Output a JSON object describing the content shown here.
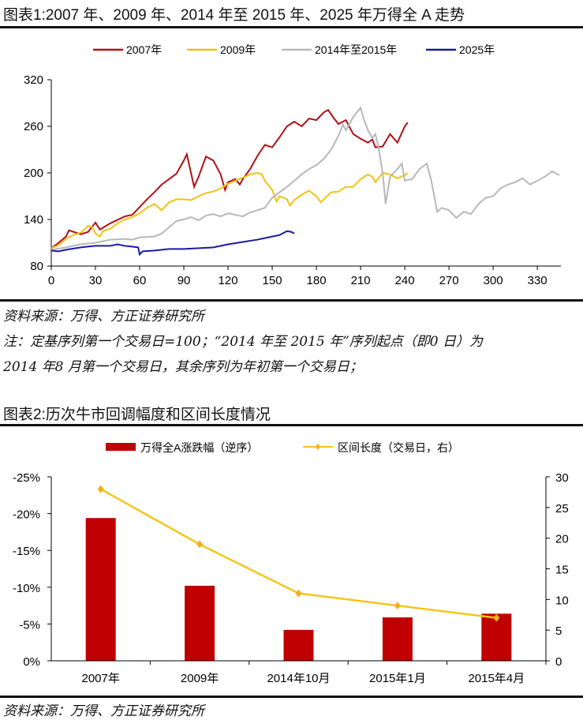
{
  "chart1": {
    "title": "图表1:2007 年、2009 年、2014 年至 2015 年、2025 年万得全 A 走势",
    "source": "资料来源：万得、方正证券研究所",
    "note_line1": "注：定基序列第一个交易日=100；“2014 年至 2015 年”序列起点（即0 日）为",
    "note_line2": "2014 年8 月第一个交易日，其余序列为年初第一个交易日；"
  },
  "chart2": {
    "title": "图表2:历次牛市回调幅度和区间长度情况",
    "source": "资料来源：万得、方正证券研究所"
  },
  "chart_data": [
    {
      "type": "line",
      "xlim": [
        0,
        346
      ],
      "ylim": [
        80,
        320
      ],
      "xticks": [
        0,
        30,
        60,
        90,
        120,
        150,
        180,
        210,
        240,
        270,
        300,
        330
      ],
      "yticks": [
        80,
        140,
        200,
        260,
        320
      ],
      "grid": false,
      "legend": "top",
      "series": [
        {
          "name": "2007年",
          "color": "#b01116",
          "points": [
            [
              0,
              103
            ],
            [
              5,
              110
            ],
            [
              10,
              118
            ],
            [
              12,
              126
            ],
            [
              20,
              121
            ],
            [
              25,
              124
            ],
            [
              30,
              136
            ],
            [
              33,
              127
            ],
            [
              40,
              135
            ],
            [
              50,
              144
            ],
            [
              55,
              146
            ],
            [
              60,
              156
            ],
            [
              65,
              166
            ],
            [
              70,
              175
            ],
            [
              75,
              185
            ],
            [
              80,
              192
            ],
            [
              85,
              199
            ],
            [
              90,
              216
            ],
            [
              92,
              224
            ],
            [
              97,
              182
            ],
            [
              100,
              195
            ],
            [
              105,
              221
            ],
            [
              110,
              216
            ],
            [
              115,
              198
            ],
            [
              118,
              178
            ],
            [
              120,
              188
            ],
            [
              125,
              192
            ],
            [
              128,
              185
            ],
            [
              130,
              192
            ],
            [
              135,
              205
            ],
            [
              140,
              222
            ],
            [
              145,
              236
            ],
            [
              150,
              233
            ],
            [
              155,
              246
            ],
            [
              160,
              260
            ],
            [
              165,
              266
            ],
            [
              170,
              260
            ],
            [
              175,
              270
            ],
            [
              180,
              268
            ],
            [
              185,
              278
            ],
            [
              188,
              281
            ],
            [
              192,
              270
            ],
            [
              195,
              263
            ],
            [
              200,
              268
            ],
            [
              205,
              250
            ],
            [
              210,
              244
            ],
            [
              215,
              239
            ],
            [
              218,
              243
            ],
            [
              220,
              233
            ],
            [
              225,
              234
            ],
            [
              230,
              250
            ],
            [
              235,
              239
            ],
            [
              240,
              260
            ],
            [
              242,
              265
            ]
          ]
        },
        {
          "name": "2009年",
          "color": "#f2c218",
          "points": [
            [
              0,
              103
            ],
            [
              5,
              107
            ],
            [
              10,
              115
            ],
            [
              15,
              120
            ],
            [
              20,
              123
            ],
            [
              25,
              132
            ],
            [
              28,
              130
            ],
            [
              30,
              122
            ],
            [
              33,
              118
            ],
            [
              35,
              125
            ],
            [
              40,
              128
            ],
            [
              45,
              135
            ],
            [
              50,
              140
            ],
            [
              55,
              143
            ],
            [
              60,
              148
            ],
            [
              65,
              155
            ],
            [
              70,
              160
            ],
            [
              75,
              152
            ],
            [
              80,
              162
            ],
            [
              85,
              166
            ],
            [
              90,
              166
            ],
            [
              95,
              165
            ],
            [
              100,
              170
            ],
            [
              105,
              174
            ],
            [
              110,
              176
            ],
            [
              115,
              180
            ],
            [
              120,
              186
            ],
            [
              125,
              190
            ],
            [
              130,
              194
            ],
            [
              135,
              198
            ],
            [
              140,
              200
            ],
            [
              143,
              198
            ],
            [
              145,
              190
            ],
            [
              150,
              178
            ],
            [
              153,
              163
            ],
            [
              155,
              170
            ],
            [
              160,
              166
            ],
            [
              162,
              158
            ],
            [
              165,
              165
            ],
            [
              170,
              172
            ],
            [
              175,
              177
            ],
            [
              180,
              170
            ],
            [
              183,
              162
            ],
            [
              185,
              166
            ],
            [
              190,
              175
            ],
            [
              195,
              176
            ],
            [
              200,
              182
            ],
            [
              205,
              182
            ],
            [
              210,
              192
            ],
            [
              215,
              198
            ],
            [
              218,
              195
            ],
            [
              220,
              188
            ],
            [
              225,
              200
            ],
            [
              230,
              198
            ],
            [
              235,
              193
            ],
            [
              240,
              197
            ],
            [
              242,
              200
            ]
          ]
        },
        {
          "name": "2014年至2015年",
          "color": "#b8b8b8",
          "points": [
            [
              0,
              101
            ],
            [
              10,
              104
            ],
            [
              20,
              108
            ],
            [
              30,
              110
            ],
            [
              40,
              114
            ],
            [
              50,
              115
            ],
            [
              55,
              114
            ],
            [
              60,
              117
            ],
            [
              70,
              118
            ],
            [
              75,
              122
            ],
            [
              80,
              130
            ],
            [
              85,
              138
            ],
            [
              90,
              140
            ],
            [
              95,
              143
            ],
            [
              100,
              139
            ],
            [
              105,
              145
            ],
            [
              110,
              147
            ],
            [
              115,
              144
            ],
            [
              120,
              148
            ],
            [
              125,
              146
            ],
            [
              130,
              144
            ],
            [
              135,
              149
            ],
            [
              140,
              152
            ],
            [
              145,
              155
            ],
            [
              150,
              168
            ],
            [
              155,
              175
            ],
            [
              160,
              182
            ],
            [
              165,
              190
            ],
            [
              170,
              198
            ],
            [
              175,
              205
            ],
            [
              180,
              210
            ],
            [
              185,
              218
            ],
            [
              190,
              230
            ],
            [
              195,
              248
            ],
            [
              198,
              262
            ],
            [
              200,
              255
            ],
            [
              205,
              272
            ],
            [
              210,
              284
            ],
            [
              212,
              270
            ],
            [
              215,
              255
            ],
            [
              218,
              245
            ],
            [
              220,
              250
            ],
            [
              222,
              235
            ],
            [
              225,
              200
            ],
            [
              227,
              160
            ],
            [
              230,
              195
            ],
            [
              235,
              205
            ],
            [
              238,
              212
            ],
            [
              240,
              190
            ],
            [
              245,
              192
            ],
            [
              250,
              205
            ],
            [
              255,
              212
            ],
            [
              258,
              190
            ],
            [
              262,
              150
            ],
            [
              265,
              155
            ],
            [
              270,
              152
            ],
            [
              275,
              142
            ],
            [
              280,
              150
            ],
            [
              285,
              147
            ],
            [
              290,
              160
            ],
            [
              295,
              168
            ],
            [
              300,
              170
            ],
            [
              305,
              180
            ],
            [
              310,
              185
            ],
            [
              315,
              188
            ],
            [
              320,
              193
            ],
            [
              325,
              185
            ],
            [
              330,
              190
            ],
            [
              335,
              195
            ],
            [
              340,
              202
            ],
            [
              345,
              197
            ]
          ]
        },
        {
          "name": "2025年",
          "color": "#1a1aa6",
          "points": [
            [
              0,
              100
            ],
            [
              5,
              99
            ],
            [
              10,
              101
            ],
            [
              20,
              104
            ],
            [
              30,
              106
            ],
            [
              40,
              106
            ],
            [
              45,
              108
            ],
            [
              50,
              106
            ],
            [
              55,
              105
            ],
            [
              59,
              104
            ],
            [
              60,
              95
            ],
            [
              62,
              99
            ],
            [
              70,
              100
            ],
            [
              80,
              102
            ],
            [
              90,
              102
            ],
            [
              100,
              103
            ],
            [
              110,
              104
            ],
            [
              120,
              108
            ],
            [
              130,
              111
            ],
            [
              140,
              114
            ],
            [
              150,
              118
            ],
            [
              155,
              120
            ],
            [
              160,
              125
            ],
            [
              163,
              124
            ],
            [
              165,
              122
            ]
          ]
        }
      ]
    },
    {
      "type": "bar+line",
      "categories": [
        "2007年",
        "2009年",
        "2014年10月",
        "2015年1月",
        "2015年4月"
      ],
      "legend": "top",
      "grid": false,
      "bar_series": {
        "name": "万得全A涨跌幅（逆序）",
        "color": "#c00000",
        "values": [
          -19.4,
          -10.2,
          -4.2,
          -5.9,
          -6.4
        ],
        "ylim": [
          0,
          -25
        ],
        "yticks": [
          "0%",
          "-5%",
          "-10%",
          "-15%",
          "-20%",
          "-25%"
        ]
      },
      "line_series": {
        "name": "区间长度（交易日，右）",
        "color": "#f5c518",
        "values": [
          28,
          19,
          11,
          9,
          7
        ],
        "ylim": [
          0,
          30
        ],
        "yticks": [
          0,
          5,
          10,
          15,
          20,
          25,
          30
        ]
      }
    }
  ]
}
